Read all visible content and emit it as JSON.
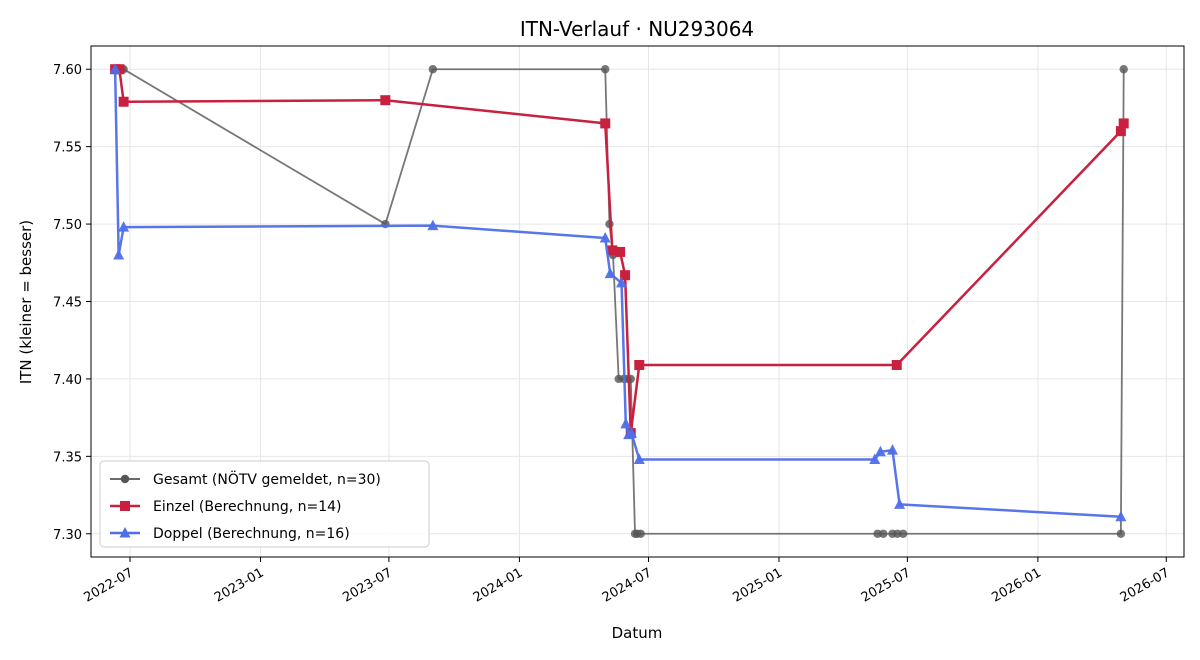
{
  "chart_data": {
    "type": "line",
    "title": "ITN-Verlauf · NU293064",
    "xlabel": "Datum",
    "ylabel": "ITN  (kleiner = besser)",
    "x_tick_labels": [
      "2022-07",
      "2023-01",
      "2023-07",
      "2024-01",
      "2024-07",
      "2025-01",
      "2025-07",
      "2026-01",
      "2026-07"
    ],
    "x_tick_dates": [
      "2022-07-01",
      "2023-01-01",
      "2023-07-01",
      "2024-01-01",
      "2024-07-01",
      "2025-01-01",
      "2025-07-01",
      "2026-01-01",
      "2026-07-01"
    ],
    "y_ticks": [
      7.3,
      7.35,
      7.4,
      7.45,
      7.5,
      7.55,
      7.6
    ],
    "y_tick_labels": [
      "7.30",
      "7.35",
      "7.40",
      "7.45",
      "7.50",
      "7.55",
      "7.60"
    ],
    "xlim": [
      "2022-05-07",
      "2026-07-26"
    ],
    "ylim": [
      7.285,
      7.615
    ],
    "grid": true,
    "legend_position": "lower-left",
    "series": [
      {
        "name": "Gesamt (NÖTV gemeldet, n=30)",
        "color": "#555555",
        "marker": "circle",
        "points": [
          [
            "2022-06-10",
            7.6
          ],
          [
            "2022-06-13",
            7.6
          ],
          [
            "2022-06-16",
            7.6
          ],
          [
            "2022-06-19",
            7.6
          ],
          [
            "2022-06-22",
            7.6
          ],
          [
            "2023-06-26",
            7.5
          ],
          [
            "2023-09-01",
            7.6
          ],
          [
            "2024-05-01",
            7.6
          ],
          [
            "2024-05-07",
            7.5
          ],
          [
            "2024-05-12",
            7.48
          ],
          [
            "2024-05-20",
            7.4
          ],
          [
            "2024-05-27",
            7.4
          ],
          [
            "2024-06-01",
            7.4
          ],
          [
            "2024-06-06",
            7.4
          ],
          [
            "2024-06-12",
            7.3
          ],
          [
            "2024-06-15",
            7.3
          ],
          [
            "2024-06-20",
            7.3
          ],
          [
            "2025-05-20",
            7.3
          ],
          [
            "2025-05-28",
            7.3
          ],
          [
            "2025-06-10",
            7.3
          ],
          [
            "2025-06-17",
            7.3
          ],
          [
            "2025-06-25",
            7.3
          ],
          [
            "2026-04-28",
            7.3
          ],
          [
            "2026-05-02",
            7.6
          ]
        ]
      },
      {
        "name": "Einzel (Berechnung, n=14)",
        "color": "#c8203e",
        "marker": "square",
        "points": [
          [
            "2022-06-10",
            7.6
          ],
          [
            "2022-06-16",
            7.6
          ],
          [
            "2022-06-22",
            7.579
          ],
          [
            "2023-06-26",
            7.58
          ],
          [
            "2024-05-01",
            7.565
          ],
          [
            "2024-05-11",
            7.483
          ],
          [
            "2024-05-22",
            7.482
          ],
          [
            "2024-05-29",
            7.467
          ],
          [
            "2024-06-06",
            7.365
          ],
          [
            "2024-06-18",
            7.409
          ],
          [
            "2025-06-16",
            7.409
          ],
          [
            "2026-04-28",
            7.56
          ],
          [
            "2026-05-02",
            7.565
          ]
        ]
      },
      {
        "name": "Doppel (Berechnung, n=16)",
        "color": "#4f6fe8",
        "marker": "triangle",
        "points": [
          [
            "2022-06-10",
            7.6
          ],
          [
            "2022-06-15",
            7.48
          ],
          [
            "2022-06-22",
            7.498
          ],
          [
            "2023-09-01",
            7.499
          ],
          [
            "2024-05-01",
            7.491
          ],
          [
            "2024-05-08",
            7.468
          ],
          [
            "2024-05-24",
            7.462
          ],
          [
            "2024-05-30",
            7.371
          ],
          [
            "2024-06-03",
            7.364
          ],
          [
            "2024-06-07",
            7.365
          ],
          [
            "2024-06-18",
            7.348
          ],
          [
            "2025-05-16",
            7.348
          ],
          [
            "2025-05-24",
            7.353
          ],
          [
            "2025-06-10",
            7.354
          ],
          [
            "2025-06-20",
            7.319
          ],
          [
            "2026-04-28",
            7.311
          ]
        ]
      }
    ]
  }
}
